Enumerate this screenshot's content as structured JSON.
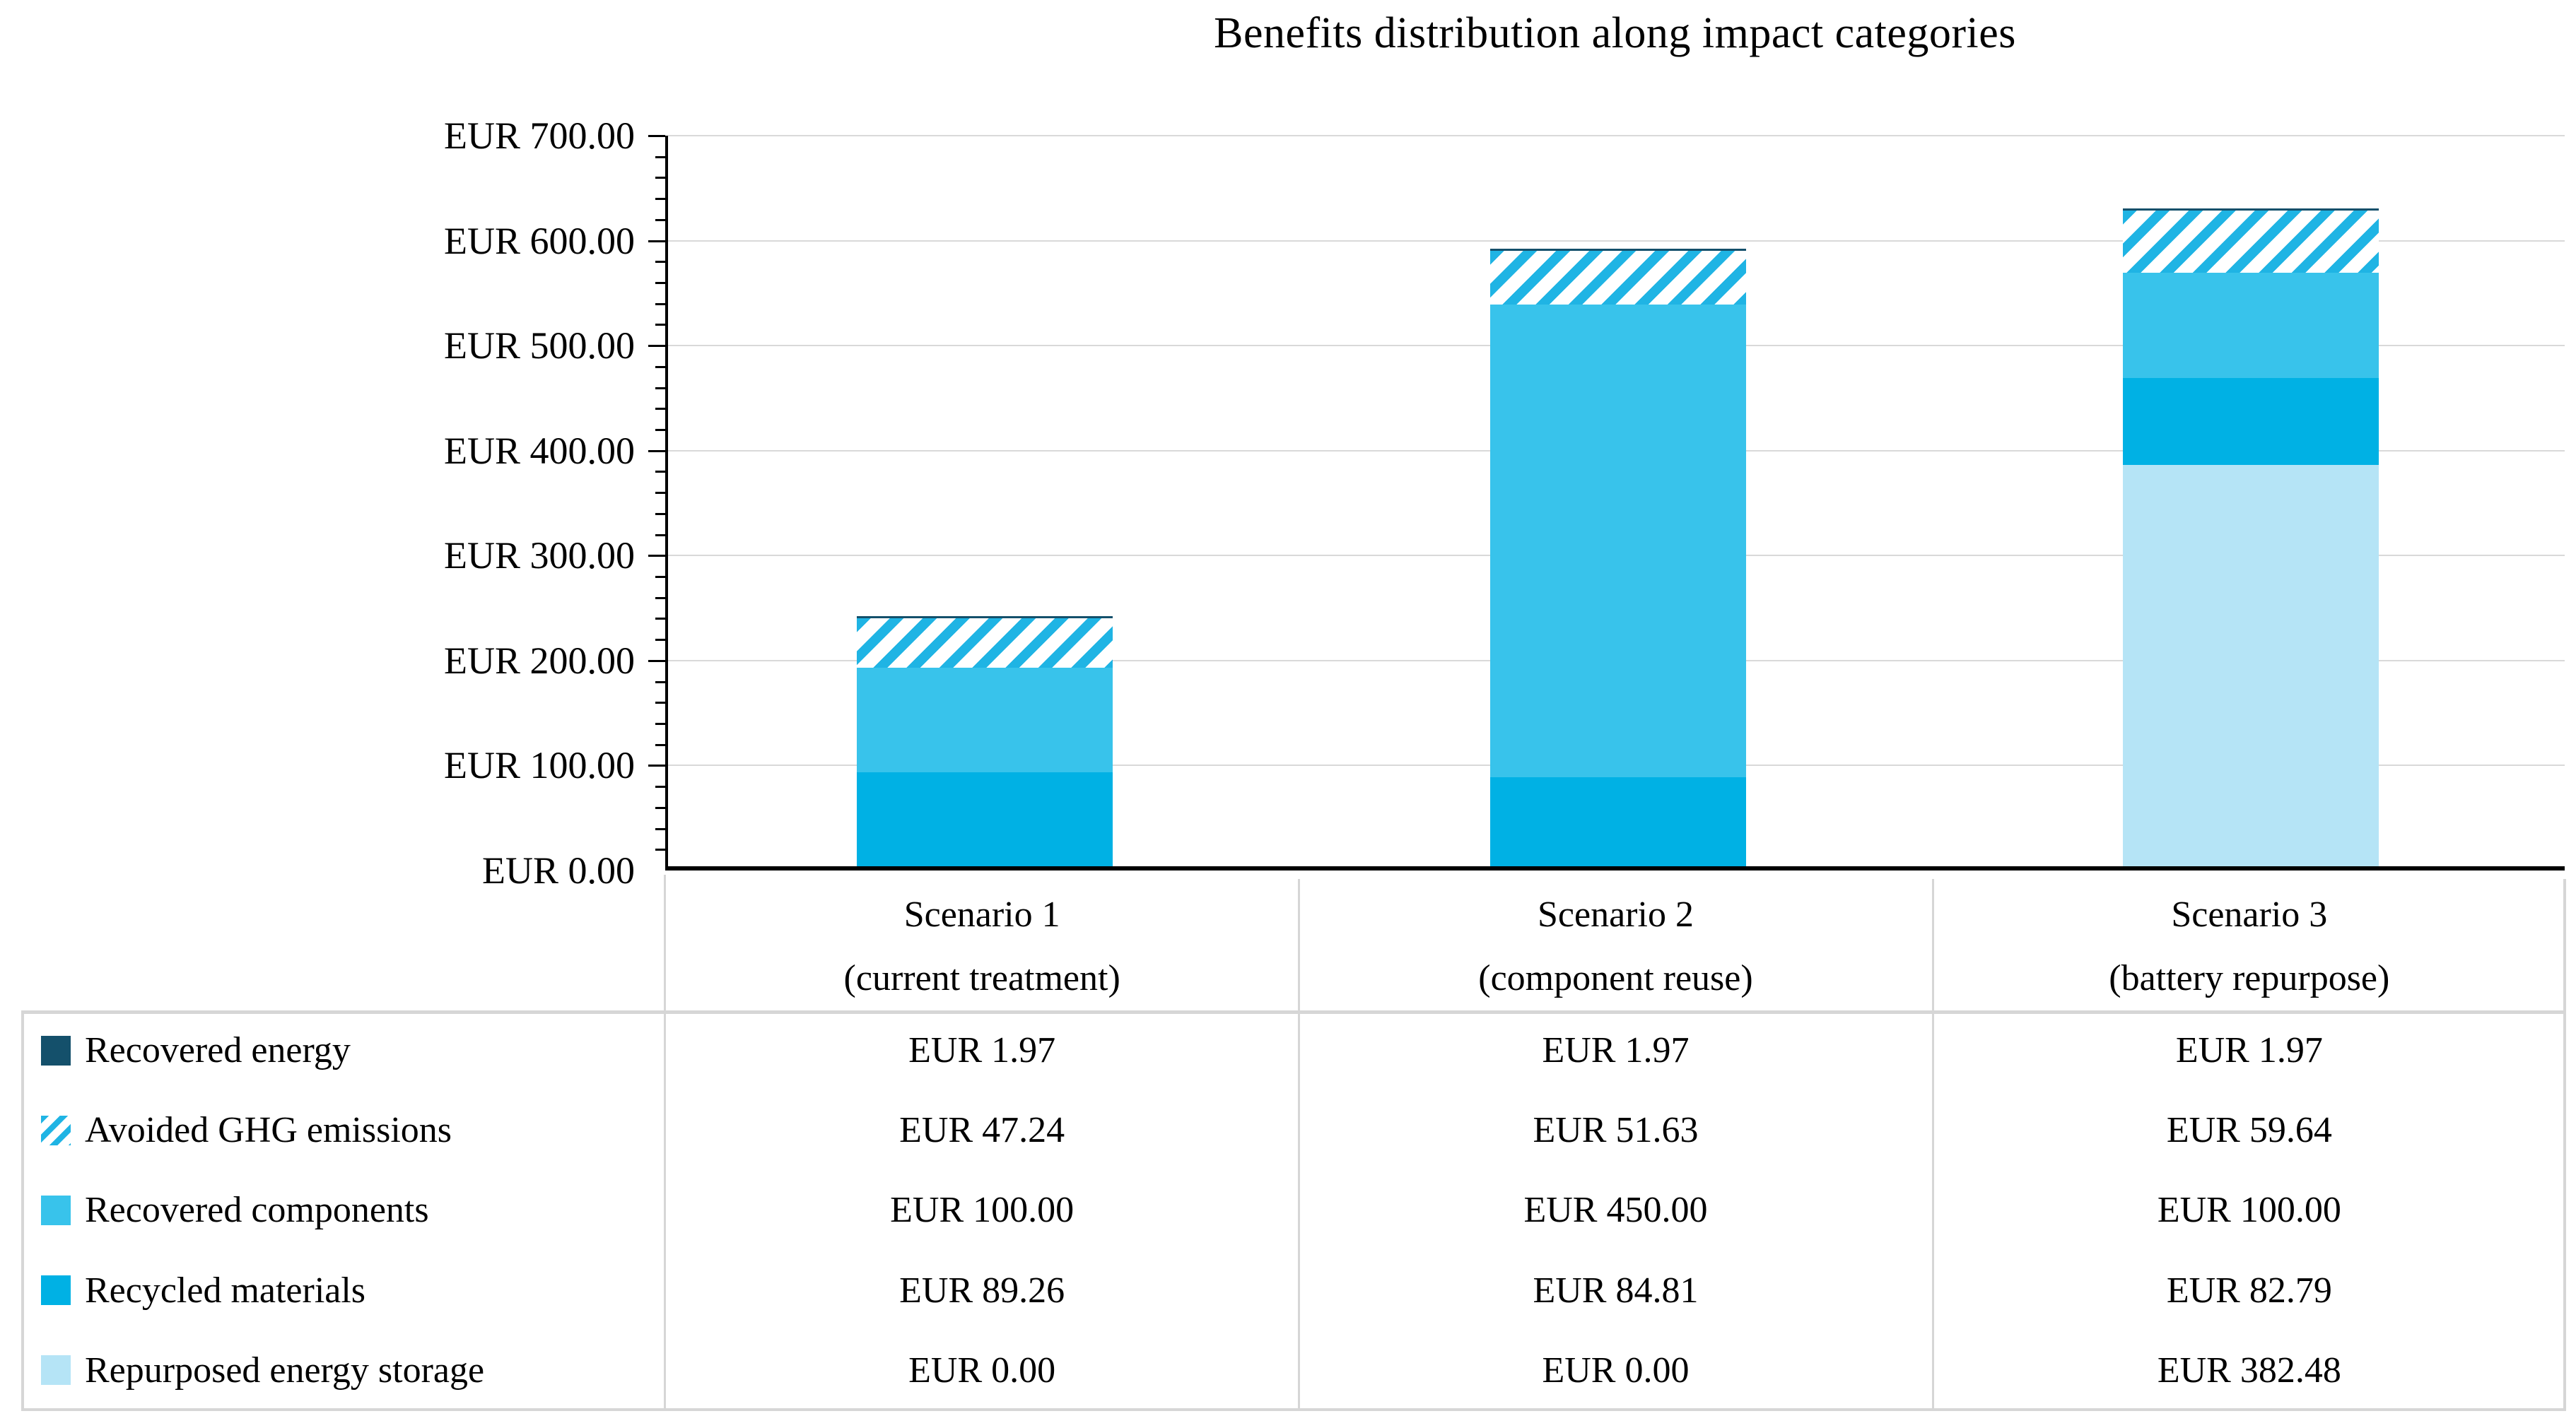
{
  "title": "Benefits distribution along impact categories",
  "colors": {
    "recovered_energy": "#14506b",
    "avoided_ghg_stripe": "#1fb4e4",
    "recovered_components": "#38c3eb",
    "recycled_materials": "#00b1e4",
    "repurposed_energy_storage": "#b5e4f6",
    "gridline": "#d9d9d9",
    "table_line": "#d6d6d6",
    "axis": "#000000"
  },
  "chart_data": {
    "type": "bar",
    "subtype": "stacked-column",
    "title": "Benefits distribution along impact categories",
    "categories": [
      "Scenario 1 (current treatment)",
      "Scenario 2 (component reuse)",
      "Scenario 3 (battery repurpose)"
    ],
    "series": [
      {
        "name": "Recovered energy",
        "key": "energy",
        "pattern": "solid",
        "color": "#14506b",
        "values": [
          1.97,
          1.97,
          1.97
        ]
      },
      {
        "name": "Avoided GHG emissions",
        "key": "ghg",
        "pattern": "diagonal-hatch",
        "color": "#1fb4e4",
        "values": [
          47.24,
          51.63,
          59.64
        ]
      },
      {
        "name": "Recovered components",
        "key": "components",
        "pattern": "solid",
        "color": "#38c3eb",
        "values": [
          100.0,
          450.0,
          100.0
        ]
      },
      {
        "name": "Recycled materials",
        "key": "recycled",
        "pattern": "solid",
        "color": "#00b1e4",
        "values": [
          89.26,
          84.81,
          82.79
        ]
      },
      {
        "name": "Repurposed energy storage",
        "key": "repurposed",
        "pattern": "solid",
        "color": "#b5e4f6",
        "values": [
          0.0,
          0.0,
          382.48
        ]
      }
    ],
    "stack_order_bottom_to_top": [
      "repurposed",
      "recycled",
      "components",
      "ghg",
      "energy"
    ],
    "totals": [
      238.47,
      588.41,
      626.88
    ],
    "y_axis": {
      "min": 0,
      "max": 700,
      "major_step": 100,
      "minor_step": 20,
      "tick_labels": [
        "EUR 700.00",
        "EUR 600.00",
        "EUR 500.00",
        "EUR 400.00",
        "EUR 300.00",
        "EUR 200.00",
        "EUR 100.00",
        "EUR 0.00"
      ]
    },
    "grid": "horizontal-major",
    "legend_position": "table-left-column"
  },
  "table": {
    "columns": [
      {
        "line1": "Scenario 1",
        "line2": "(current treatment)"
      },
      {
        "line1": "Scenario 2",
        "line2": "(component reuse)"
      },
      {
        "line1": "Scenario 3",
        "line2": "(battery repurpose)"
      }
    ],
    "rows": [
      {
        "key": "energy",
        "label": "Recovered energy",
        "values": [
          "EUR 1.97",
          "EUR 1.97",
          "EUR 1.97"
        ]
      },
      {
        "key": "ghg",
        "label": "Avoided GHG emissions",
        "values": [
          "EUR 47.24",
          "EUR 51.63",
          "EUR 59.64"
        ]
      },
      {
        "key": "components",
        "label": "Recovered components",
        "values": [
          "EUR 100.00",
          "EUR 450.00",
          "EUR 100.00"
        ]
      },
      {
        "key": "recycled",
        "label": "Recycled materials",
        "values": [
          "EUR 89.26",
          "EUR 84.81",
          "EUR 82.79"
        ]
      },
      {
        "key": "repurposed",
        "label": "Repurposed energy storage",
        "values": [
          "EUR 0.00",
          "EUR 0.00",
          "EUR 382.48"
        ]
      }
    ]
  }
}
